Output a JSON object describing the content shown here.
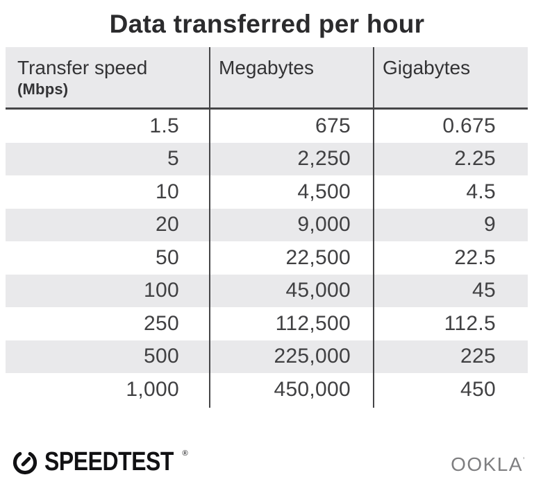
{
  "title": "Data transferred per hour",
  "table": {
    "columns": [
      {
        "label": "Transfer speed",
        "sub": "(Mbps)"
      },
      {
        "label": "Megabytes"
      },
      {
        "label": "Gigabytes"
      }
    ],
    "rows": [
      [
        "1.5",
        "675",
        "0.675"
      ],
      [
        "5",
        "2,250",
        "2.25"
      ],
      [
        "10",
        "4,500",
        "4.5"
      ],
      [
        "20",
        "9,000",
        "9"
      ],
      [
        "50",
        "22,500",
        "22.5"
      ],
      [
        "100",
        "45,000",
        "45"
      ],
      [
        "250",
        "112,500",
        "112.5"
      ],
      [
        "500",
        "225,000",
        "225"
      ],
      [
        "1,000",
        "450,000",
        "450"
      ]
    ]
  },
  "footer": {
    "speedtest": "SPEEDTEST",
    "speedtest_mark": "®",
    "ookla": "OOKLA",
    "ookla_mark": "’"
  },
  "colors": {
    "bg": "#ffffff",
    "stripe": "#e9e9eb",
    "line": "#454547",
    "title": "#2b2b2d",
    "header-text": "#333335",
    "cell-text": "#404042",
    "speedtest": "#111113",
    "ookla": "#7e7e80"
  },
  "chart_data": {
    "type": "table",
    "title": "Data transferred per hour",
    "columns": [
      "Transfer speed (Mbps)",
      "Megabytes",
      "Gigabytes"
    ],
    "rows": [
      [
        1.5,
        675,
        0.675
      ],
      [
        5,
        2250,
        2.25
      ],
      [
        10,
        4500,
        4.5
      ],
      [
        20,
        9000,
        9
      ],
      [
        50,
        22500,
        22.5
      ],
      [
        100,
        45000,
        45
      ],
      [
        250,
        112500,
        112.5
      ],
      [
        500,
        225000,
        225
      ],
      [
        1000,
        450000,
        450
      ]
    ],
    "layout": {
      "zebra_striping": true,
      "first_row_background": "white",
      "grid": "vertical-dividers-only"
    }
  }
}
